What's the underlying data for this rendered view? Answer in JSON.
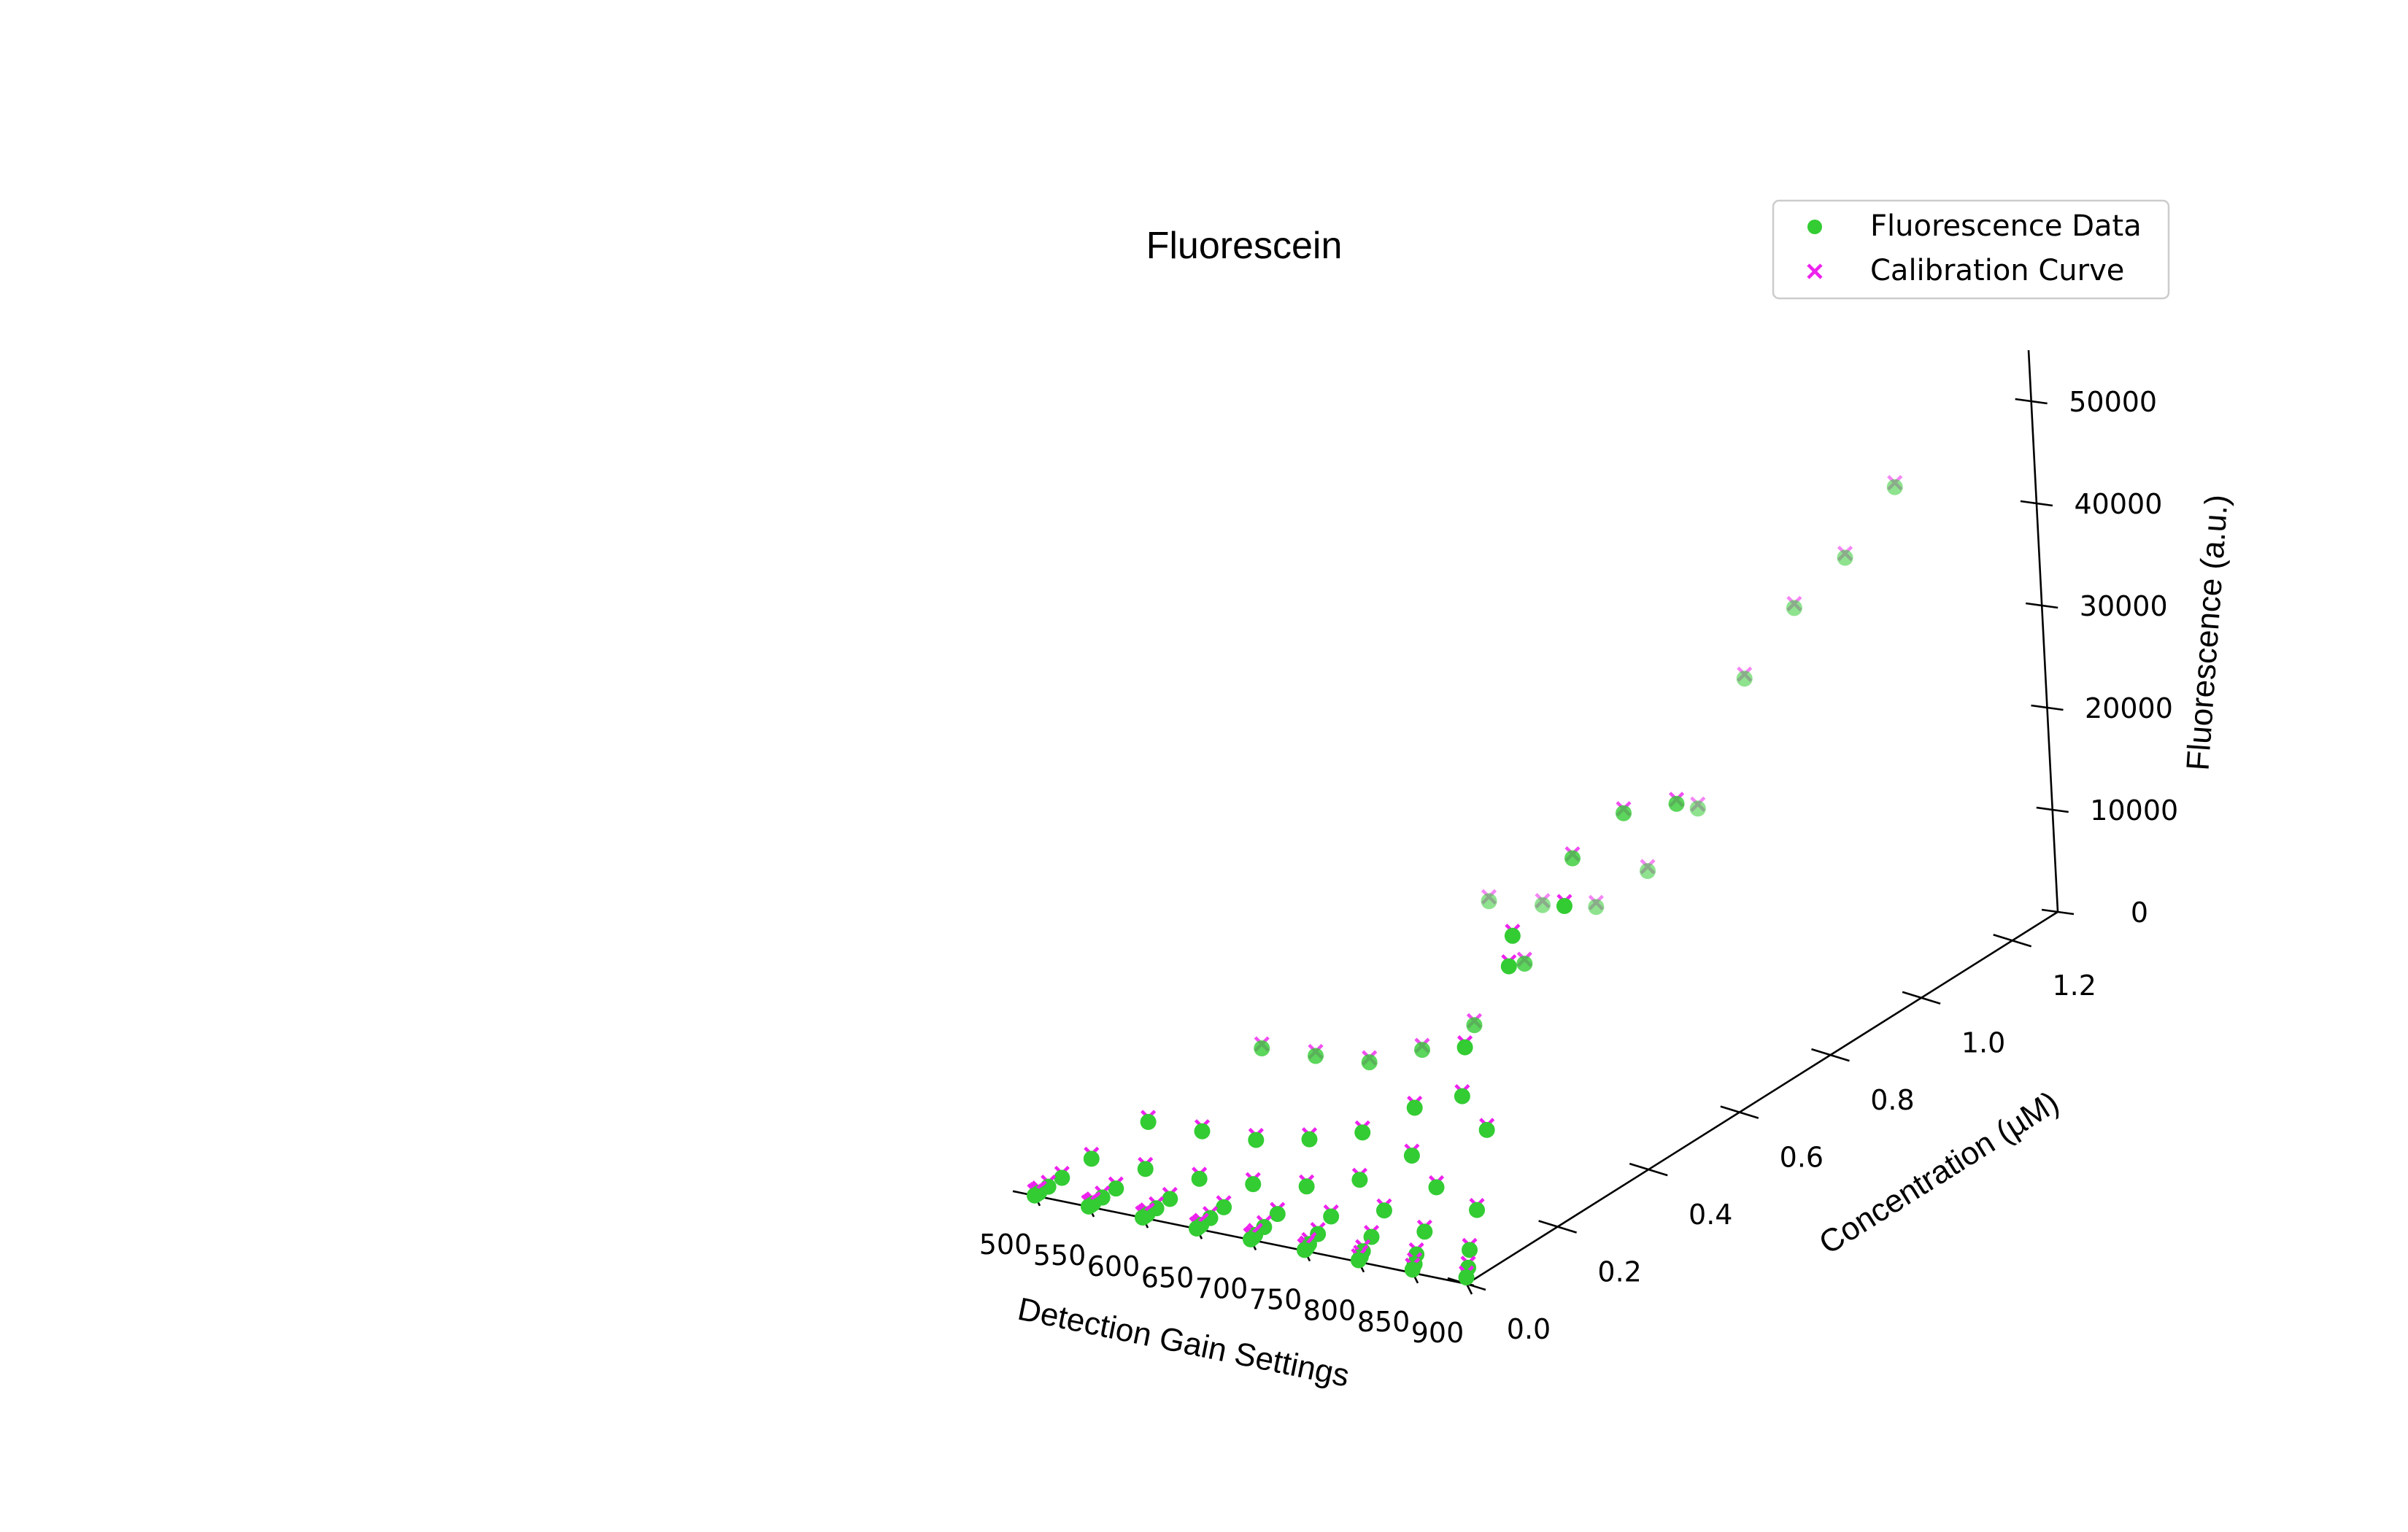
{
  "chart_data": {
    "type": "scatter",
    "projection": "3d",
    "title": "Fluorescein",
    "xlabel": "Detection Gain Settings",
    "ylabel": "Concentration (µM)",
    "zlabel": "Fluorescence (a.u.)",
    "xlim": [
      500,
      900
    ],
    "ylim": [
      0,
      1.3
    ],
    "zlim": [
      0,
      55000
    ],
    "x_ticks": [
      500,
      550,
      600,
      650,
      700,
      750,
      800,
      850,
      900
    ],
    "y_ticks": [
      "0.0",
      "0.2",
      "0.4",
      "0.6",
      "0.8",
      "1.0",
      "1.2"
    ],
    "z_ticks": [
      "0",
      "10000",
      "20000",
      "30000",
      "40000",
      "50000"
    ],
    "grid": false,
    "legend_position": "top-right",
    "gains": [
      500,
      550,
      600,
      650,
      700,
      750,
      800,
      850,
      900
    ],
    "concentrations": [
      0.0,
      0.005,
      0.01,
      0.03,
      0.06,
      0.125,
      0.25,
      0.5,
      1.0
    ],
    "series": [
      {
        "name": "Fluorescence Data",
        "marker": "circle",
        "color": "#33cc33",
        "values": [
          [
            3,
            5,
            8,
            20,
            40,
            80,
            160,
            320,
            640
          ],
          [
            6,
            10,
            17,
            45,
            90,
            180,
            360,
            720,
            1450
          ],
          [
            12,
            22,
            35,
            95,
            190,
            380,
            760,
            1530,
            3050
          ],
          [
            25,
            45,
            75,
            200,
            400,
            800,
            1600,
            3200,
            6400
          ],
          [
            50,
            90,
            150,
            420,
            840,
            1680,
            3350,
            6700,
            13400
          ],
          [
            100,
            180,
            300,
            860,
            1720,
            3450,
            6900,
            13800,
            27600
          ],
          [
            200,
            370,
            600,
            1750,
            3500,
            7000,
            14000,
            26000,
            30000
          ],
          [
            400,
            740,
            1200,
            3500,
            7000,
            14100,
            25500,
            31000,
            33000
          ],
          [
            800,
            1500,
            2400,
            7000,
            14200,
            28000,
            36000,
            42000,
            50000
          ]
        ]
      },
      {
        "name": "Calibration Curve",
        "marker": "x",
        "color": "#ee22ee",
        "values": [
          [
            3,
            5,
            8,
            20,
            40,
            80,
            160,
            320,
            640
          ],
          [
            6,
            10,
            17,
            45,
            90,
            180,
            360,
            720,
            1450
          ],
          [
            12,
            22,
            35,
            95,
            190,
            380,
            760,
            1530,
            3050
          ],
          [
            25,
            45,
            75,
            200,
            400,
            800,
            1600,
            3200,
            6400
          ],
          [
            50,
            90,
            150,
            420,
            840,
            1680,
            3350,
            6700,
            13400
          ],
          [
            100,
            180,
            300,
            860,
            1720,
            3450,
            6900,
            13800,
            27600
          ],
          [
            200,
            370,
            600,
            1750,
            3500,
            7000,
            14000,
            26000,
            30000
          ],
          [
            400,
            740,
            1200,
            3500,
            7000,
            14100,
            25500,
            31000,
            33000
          ],
          [
            800,
            1500,
            2400,
            7000,
            14200,
            28000,
            36000,
            42000,
            50000
          ]
        ]
      }
    ]
  }
}
